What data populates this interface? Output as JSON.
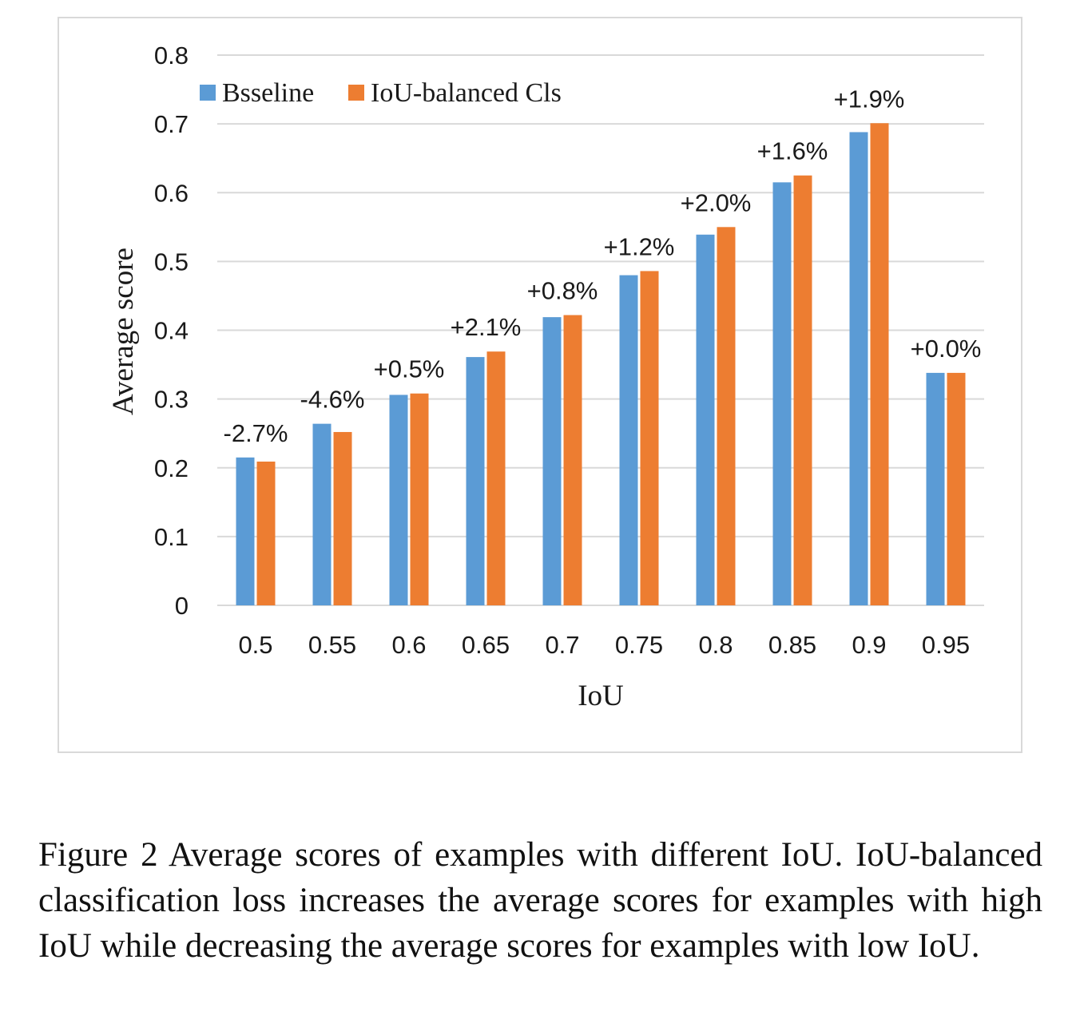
{
  "chart_data": {
    "type": "bar",
    "xlabel": "IoU",
    "ylabel": "Average score",
    "ylim": [
      0,
      0.8
    ],
    "yticks": [
      "0",
      "0.1",
      "0.2",
      "0.3",
      "0.4",
      "0.5",
      "0.6",
      "0.7",
      "0.8"
    ],
    "categories": [
      "0.5",
      "0.55",
      "0.6",
      "0.65",
      "0.7",
      "0.75",
      "0.8",
      "0.85",
      "0.9",
      "0.95"
    ],
    "series": [
      {
        "name": "Bsseline",
        "color": "#5b9bd5",
        "values": [
          0.215,
          0.264,
          0.306,
          0.361,
          0.419,
          0.48,
          0.539,
          0.615,
          0.688,
          0.338
        ]
      },
      {
        "name": "IoU-balanced Cls",
        "color": "#ed7d31",
        "values": [
          0.209,
          0.252,
          0.308,
          0.369,
          0.422,
          0.486,
          0.55,
          0.625,
          0.701,
          0.338
        ]
      }
    ],
    "data_labels": [
      "-2.7%",
      "-4.6%",
      "+0.5%",
      "+2.1%",
      "+0.8%",
      "+1.2%",
      "+2.0%",
      "+1.6%",
      "+1.9%",
      "+0.0%"
    ],
    "legend_position": "top-left",
    "grid": true
  },
  "caption": "Figure 2 Average scores of examples with different IoU. IoU-balanced classification loss increases the average scores for examples with high IoU while decreasing the average scores for examples with low IoU."
}
